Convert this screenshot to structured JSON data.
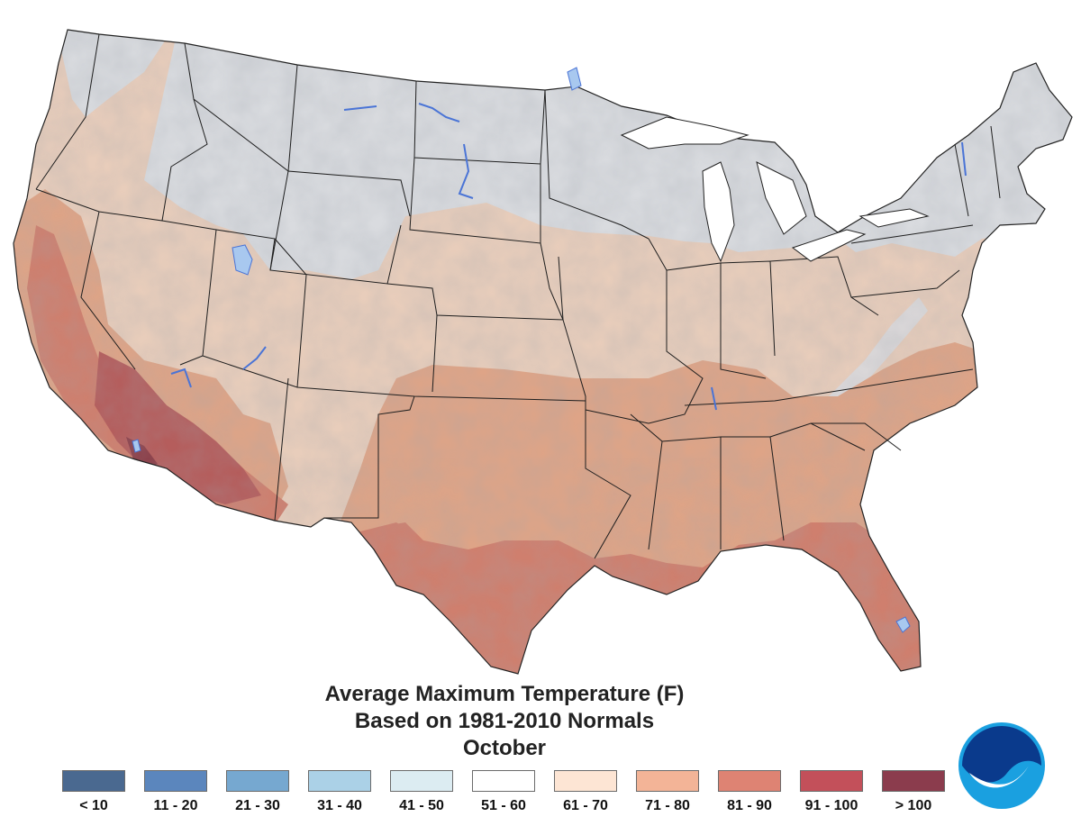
{
  "map": {
    "title_lines": [
      "Average Maximum Temperature (F)",
      "Based on 1981-2010 Normals",
      "October"
    ],
    "region": "contiguous-united-states",
    "zones": [
      {
        "band": "51 - 60",
        "area": "northern plains, upper midwest, northern rockies, new england",
        "color": "#d9dbdf"
      },
      {
        "band": "61 - 70",
        "area": "pacific northwest, great basin, central plains, ohio valley, mid-atlantic",
        "color": "#e8cdbb"
      },
      {
        "band": "71 - 80",
        "area": "southern plains, tennessee valley, carolinas",
        "color": "#dea487"
      },
      {
        "band": "81 - 90",
        "area": "gulf coast, south texas, florida, central valley",
        "color": "#cf7f6e"
      },
      {
        "band": "91 - 100",
        "area": "southwest deserts",
        "color": "#b55d5c"
      },
      {
        "band": "> 100",
        "area": "lower colorado river",
        "color": "#8c3e48"
      }
    ],
    "water_color": "#7db0e8",
    "lake_color": "#a8c8ef"
  },
  "legend": {
    "items": [
      {
        "label": "< 10",
        "color": "#4a6990"
      },
      {
        "label": "11 - 20",
        "color": "#5b86bd"
      },
      {
        "label": "21 - 30",
        "color": "#76a8d0"
      },
      {
        "label": "31 - 40",
        "color": "#abd1e7"
      },
      {
        "label": "41 - 50",
        "color": "#dcecf2"
      },
      {
        "label": "51 - 60",
        "color": "#ffffff"
      },
      {
        "label": "61 - 70",
        "color": "#fde5d4"
      },
      {
        "label": "71 - 80",
        "color": "#f3b497"
      },
      {
        "label": "81 - 90",
        "color": "#de8373"
      },
      {
        "label": "91 - 100",
        "color": "#c3505a"
      },
      {
        "label": "> 100",
        "color": "#8b3c4d"
      }
    ]
  },
  "logo": {
    "name": "NOAA",
    "color_dark": "#0a3a8c",
    "color_light": "#1aa0e0"
  }
}
